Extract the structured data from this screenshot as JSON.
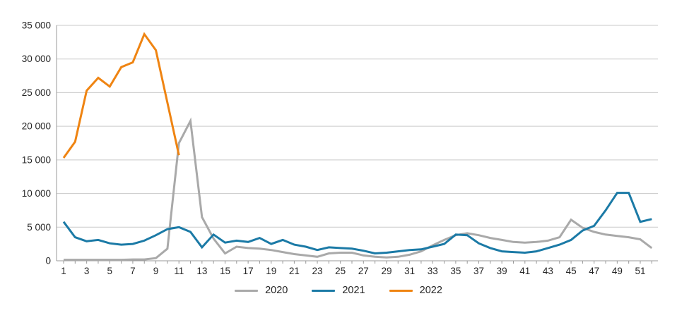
{
  "chart_data": {
    "type": "line",
    "title": "",
    "xlabel": "",
    "ylabel": "",
    "x_unit": "week",
    "x": [
      1,
      2,
      3,
      4,
      5,
      6,
      7,
      8,
      9,
      10,
      11,
      12,
      13,
      14,
      15,
      16,
      17,
      18,
      19,
      20,
      21,
      22,
      23,
      24,
      25,
      26,
      27,
      28,
      29,
      30,
      31,
      32,
      33,
      34,
      35,
      36,
      37,
      38,
      39,
      40,
      41,
      42,
      43,
      44,
      45,
      46,
      47,
      48,
      49,
      50,
      51,
      52
    ],
    "x_tick_labels": [
      "1",
      "3",
      "5",
      "7",
      "9",
      "11",
      "13",
      "15",
      "17",
      "19",
      "21",
      "23",
      "25",
      "27",
      "29",
      "31",
      "33",
      "35",
      "37",
      "39",
      "41",
      "43",
      "45",
      "47",
      "49",
      "51"
    ],
    "ylim": [
      0,
      35000
    ],
    "y_tick_interval": 5000,
    "y_tick_labels": [
      "0",
      "5 000",
      "10 000",
      "15 000",
      "20 000",
      "25 000",
      "30 000",
      "35 000"
    ],
    "grid": "horizontal-only",
    "legend_position": "bottom-center",
    "series": [
      {
        "name": "2020",
        "color": "#a9a9a9",
        "values": [
          150,
          150,
          150,
          150,
          150,
          150,
          200,
          200,
          400,
          1800,
          17500,
          20800,
          6500,
          3300,
          1100,
          2100,
          1900,
          1800,
          1600,
          1300,
          1000,
          800,
          600,
          1100,
          1200,
          1200,
          800,
          600,
          500,
          600,
          900,
          1400,
          2300,
          3100,
          3800,
          4100,
          3800,
          3400,
          3100,
          2800,
          2700,
          2800,
          3000,
          3500,
          6100,
          4900,
          4300,
          3900,
          3700,
          3500,
          3200,
          1900
        ]
      },
      {
        "name": "2021",
        "color": "#1b7aa6",
        "values": [
          5800,
          3500,
          2900,
          3100,
          2600,
          2400,
          2500,
          3000,
          3800,
          4700,
          5000,
          4300,
          2000,
          3900,
          2700,
          3000,
          2800,
          3400,
          2500,
          3100,
          2400,
          2100,
          1600,
          2000,
          1900,
          1800,
          1500,
          1100,
          1200,
          1400,
          1600,
          1700,
          2100,
          2500,
          3900,
          3800,
          2600,
          1900,
          1400,
          1300,
          1200,
          1400,
          1900,
          2400,
          3100,
          4500,
          5200,
          7500,
          10100,
          10100,
          5800,
          6200
        ]
      },
      {
        "name": "2022",
        "color": "#ef8412",
        "values": [
          15300,
          17700,
          25300,
          27200,
          25900,
          28800,
          29500,
          33700,
          31300,
          23500,
          15700
        ]
      }
    ]
  },
  "style": {
    "gridline_color": "#c9c9c9",
    "axis_color": "#999999",
    "text_color": "#262626"
  }
}
